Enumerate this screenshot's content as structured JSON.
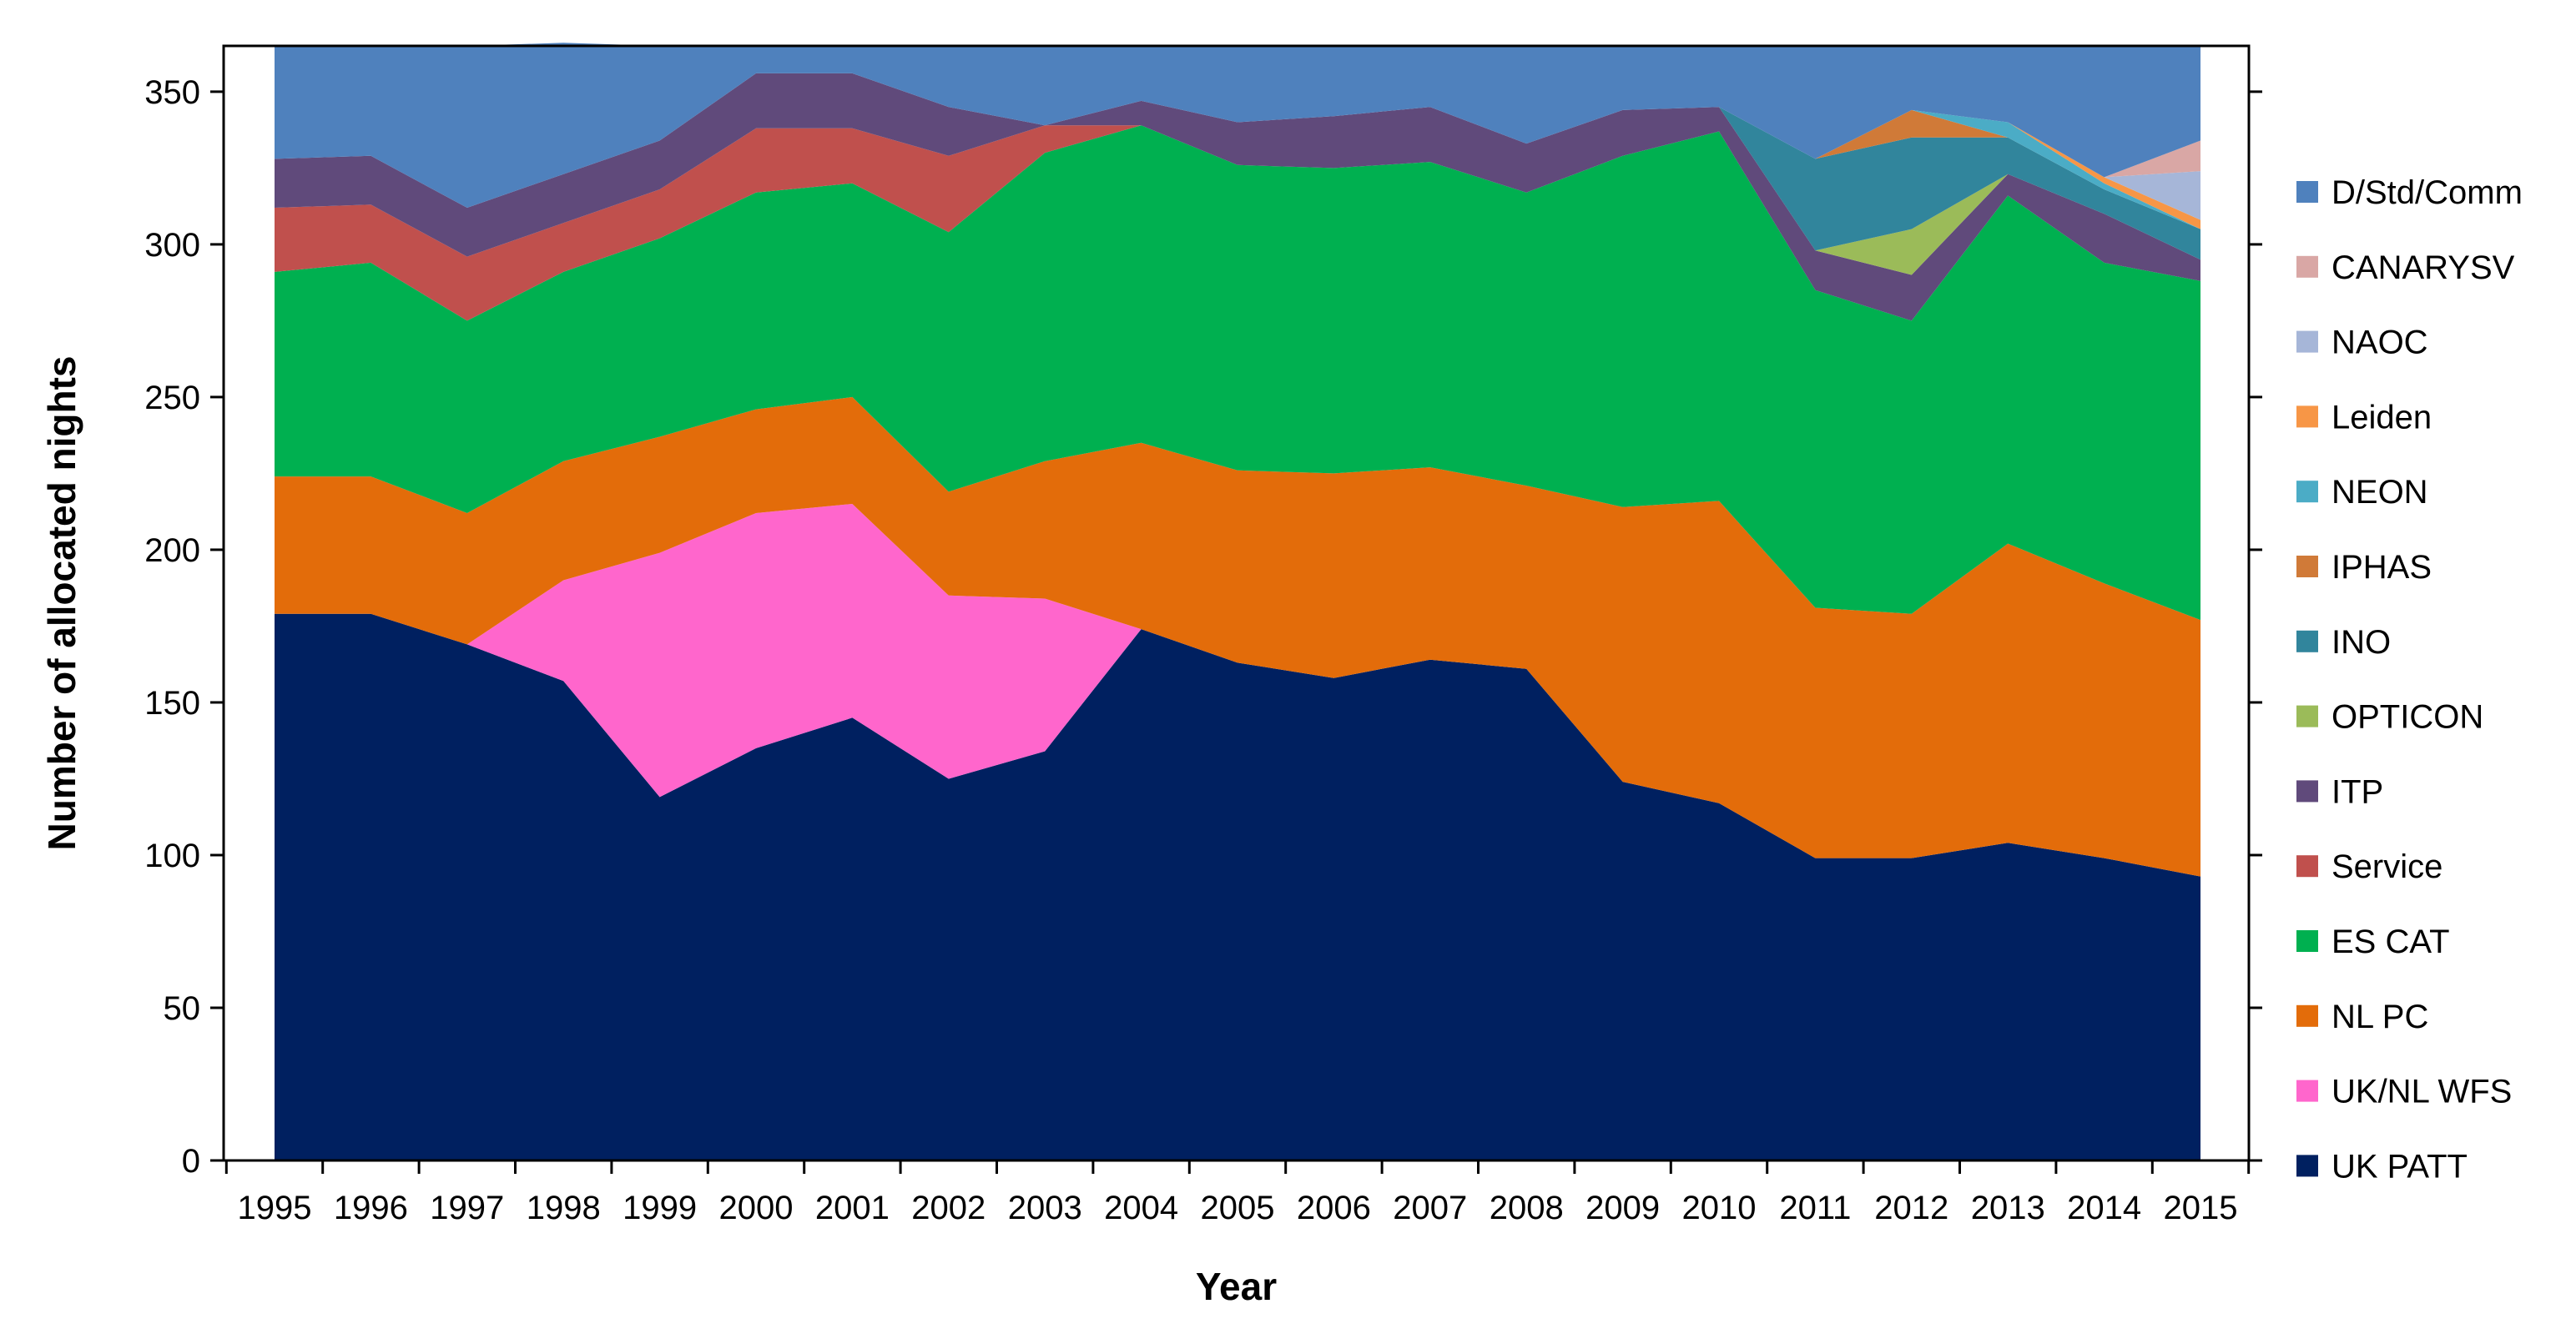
{
  "chart_data": {
    "type": "area",
    "stacked": true,
    "title": "",
    "xlabel": "Year",
    "ylabel": "Number of allocated nights",
    "x": [
      1995,
      1996,
      1997,
      1998,
      1999,
      2000,
      2001,
      2002,
      2003,
      2004,
      2005,
      2006,
      2007,
      2008,
      2009,
      2010,
      2011,
      2012,
      2013,
      2014,
      2015
    ],
    "ylim": [
      0,
      365
    ],
    "yticks": [
      0,
      50,
      100,
      150,
      200,
      250,
      300,
      350
    ],
    "grid": false,
    "legend_position": "right",
    "series": [
      {
        "name": "UK PATT",
        "color": "#002060",
        "values": [
          179,
          179,
          169,
          157,
          119,
          135,
          145,
          125,
          134,
          174,
          163,
          158,
          164,
          161,
          124,
          117,
          99,
          99,
          104,
          99,
          93
        ]
      },
      {
        "name": "UK/NL WFS",
        "color": "#ff66cc",
        "values": [
          0,
          0,
          0,
          33,
          80,
          77,
          70,
          60,
          50,
          0,
          0,
          0,
          0,
          0,
          0,
          0,
          0,
          0,
          0,
          0,
          0
        ]
      },
      {
        "name": "NL PC",
        "color": "#e36c0a",
        "values": [
          45,
          45,
          43,
          39,
          38,
          34,
          35,
          34,
          45,
          61,
          63,
          67,
          63,
          60,
          90,
          99,
          82,
          80,
          98,
          90,
          84
        ]
      },
      {
        "name": "ES CAT",
        "color": "#00b050",
        "values": [
          67,
          70,
          63,
          62,
          65,
          71,
          70,
          85,
          101,
          104,
          100,
          100,
          100,
          96,
          115,
          121,
          104,
          96,
          114,
          105,
          111
        ]
      },
      {
        "name": "Service",
        "color": "#c0504d",
        "values": [
          21,
          19,
          21,
          16,
          16,
          21,
          18,
          25,
          9,
          0,
          0,
          0,
          0,
          0,
          0,
          0,
          0,
          0,
          0,
          0,
          0
        ]
      },
      {
        "name": "ITP",
        "color": "#604a7b",
        "values": [
          16,
          16,
          16,
          16,
          16,
          18,
          18,
          16,
          0,
          8,
          14,
          17,
          18,
          16,
          15,
          8,
          13,
          15,
          7,
          16,
          7
        ]
      },
      {
        "name": "OPTICON",
        "color": "#9bbb59",
        "values": [
          0,
          0,
          0,
          0,
          0,
          0,
          0,
          0,
          0,
          0,
          0,
          0,
          0,
          0,
          0,
          0,
          0,
          15,
          0,
          0,
          0
        ]
      },
      {
        "name": "INO",
        "color": "#31859c",
        "values": [
          0,
          0,
          0,
          0,
          0,
          0,
          0,
          0,
          0,
          0,
          0,
          0,
          0,
          0,
          0,
          0,
          30,
          30,
          12,
          8,
          10
        ]
      },
      {
        "name": "IPHAS",
        "color": "#d07a38",
        "values": [
          0,
          0,
          0,
          0,
          0,
          0,
          0,
          0,
          0,
          0,
          0,
          0,
          0,
          0,
          0,
          0,
          0,
          9,
          0,
          0,
          0
        ]
      },
      {
        "name": "NEON",
        "color": "#4bacc6",
        "values": [
          0,
          0,
          0,
          0,
          0,
          0,
          0,
          0,
          0,
          0,
          0,
          0,
          0,
          0,
          0,
          0,
          0,
          0,
          5,
          2,
          0
        ]
      },
      {
        "name": "Leiden",
        "color": "#f79646",
        "values": [
          0,
          0,
          0,
          0,
          0,
          0,
          0,
          0,
          0,
          0,
          0,
          0,
          0,
          0,
          0,
          0,
          0,
          0,
          0,
          2,
          3
        ]
      },
      {
        "name": "NAOC",
        "color": "#a6b6d8",
        "values": [
          0,
          0,
          0,
          0,
          0,
          0,
          0,
          0,
          0,
          0,
          0,
          0,
          0,
          0,
          0,
          0,
          0,
          0,
          0,
          0,
          16
        ]
      },
      {
        "name": "CANARYSV",
        "color": "#d9a7a5",
        "values": [
          0,
          0,
          0,
          0,
          0,
          0,
          0,
          0,
          0,
          0,
          0,
          0,
          0,
          0,
          0,
          0,
          0,
          0,
          0,
          0,
          10
        ]
      },
      {
        "name": "D/Std/Comm",
        "color": "#4f81bd",
        "values": [
          37,
          36,
          53,
          43,
          31,
          9,
          9,
          20,
          26,
          18,
          25,
          23,
          20,
          32,
          21,
          20,
          37,
          21,
          25,
          43,
          31
        ]
      }
    ]
  }
}
